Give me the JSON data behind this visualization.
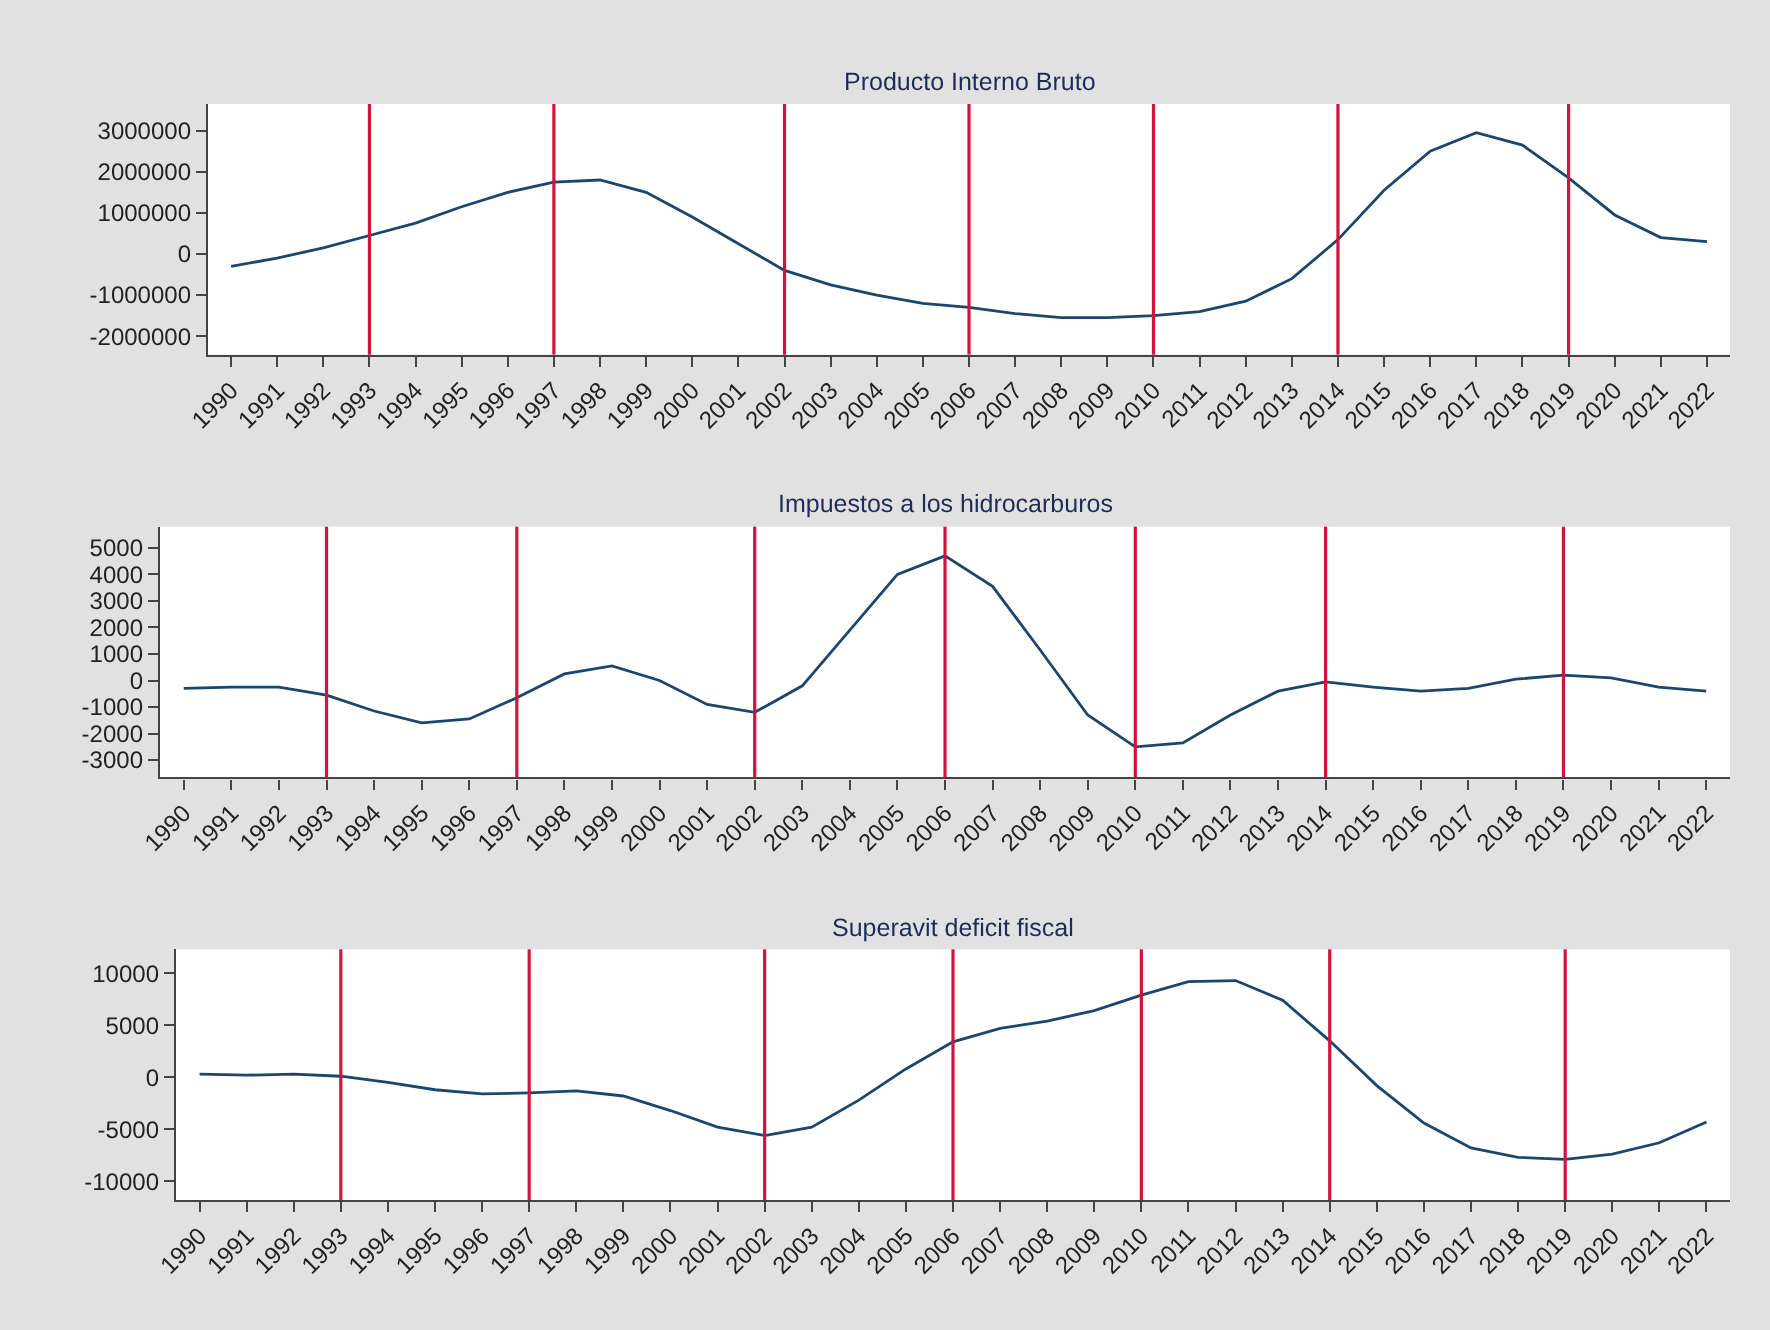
{
  "chart_data": [
    {
      "type": "line",
      "title": "Producto Interno Bruto",
      "color": "#1a476f",
      "x": [
        1990,
        1991,
        1992,
        1993,
        1994,
        1995,
        1996,
        1997,
        1998,
        1999,
        2000,
        2001,
        2002,
        2003,
        2004,
        2005,
        2006,
        2007,
        2008,
        2009,
        2010,
        2011,
        2012,
        2013,
        2014,
        2015,
        2016,
        2017,
        2018,
        2019,
        2020,
        2021,
        2022
      ],
      "values": [
        -300000,
        -100000,
        150000,
        450000,
        750000,
        1150000,
        1500000,
        1750000,
        1800000,
        1500000,
        900000,
        250000,
        -400000,
        -750000,
        -1000000,
        -1200000,
        -1300000,
        -1450000,
        -1550000,
        -1550000,
        -1500000,
        -1400000,
        -1150000,
        -600000,
        350000,
        1550000,
        2500000,
        2950000,
        2650000,
        1850000,
        950000,
        400000,
        300000
      ],
      "xlim": [
        1989.5,
        2022.5
      ],
      "xticks": [
        1990,
        1991,
        1992,
        1993,
        1994,
        1995,
        1996,
        1997,
        1998,
        1999,
        2000,
        2001,
        2002,
        2003,
        2004,
        2005,
        2006,
        2007,
        2008,
        2009,
        2010,
        2011,
        2012,
        2013,
        2014,
        2015,
        2016,
        2017,
        2018,
        2019,
        2020,
        2021,
        2022
      ],
      "ylim": [
        -2450000,
        3650000
      ],
      "yticks": [
        -2000000,
        -1000000,
        0,
        1000000,
        2000000,
        3000000
      ],
      "ref_lines": [
        {
          "axis": "x",
          "value": 1993,
          "color": "#d2143c"
        },
        {
          "axis": "x",
          "value": 1997,
          "color": "#d2143c"
        },
        {
          "axis": "x",
          "value": 2002,
          "color": "#d2143c"
        },
        {
          "axis": "x",
          "value": 2006,
          "color": "#d2143c"
        },
        {
          "axis": "x",
          "value": 2010,
          "color": "#d2143c"
        },
        {
          "axis": "x",
          "value": 2014,
          "color": "#d2143c"
        },
        {
          "axis": "x",
          "value": 2019,
          "color": "#d2143c"
        }
      ]
    },
    {
      "type": "line",
      "title": "Impuestos a los hidrocarburos",
      "color": "#1a476f",
      "x": [
        1990,
        1991,
        1992,
        1993,
        1994,
        1995,
        1996,
        1997,
        1998,
        1999,
        2000,
        2001,
        2002,
        2003,
        2004,
        2005,
        2006,
        2007,
        2008,
        2009,
        2010,
        2011,
        2012,
        2013,
        2014,
        2015,
        2016,
        2017,
        2018,
        2019,
        2020,
        2021,
        2022
      ],
      "values": [
        -300,
        -250,
        -250,
        -550,
        -1150,
        -1600,
        -1450,
        -650,
        250,
        550,
        0,
        -900,
        -1200,
        -200,
        1900,
        4000,
        4700,
        3550,
        1150,
        -1300,
        -2500,
        -2350,
        -1300,
        -400,
        -50,
        -250,
        -400,
        -300,
        50,
        200,
        100,
        -250,
        -400
      ],
      "xlim": [
        1989.5,
        2022.5
      ],
      "xticks": [
        1990,
        1991,
        1992,
        1993,
        1994,
        1995,
        1996,
        1997,
        1998,
        1999,
        2000,
        2001,
        2002,
        2003,
        2004,
        2005,
        2006,
        2007,
        2008,
        2009,
        2010,
        2011,
        2012,
        2013,
        2014,
        2015,
        2016,
        2017,
        2018,
        2019,
        2020,
        2021,
        2022
      ],
      "ylim": [
        -3650,
        5800
      ],
      "yticks": [
        -3000,
        -2000,
        -1000,
        0,
        1000,
        2000,
        3000,
        4000,
        5000
      ],
      "ref_lines": [
        {
          "axis": "x",
          "value": 1993,
          "color": "#d2143c"
        },
        {
          "axis": "x",
          "value": 1997,
          "color": "#d2143c"
        },
        {
          "axis": "x",
          "value": 2002,
          "color": "#d2143c"
        },
        {
          "axis": "x",
          "value": 2006,
          "color": "#d2143c"
        },
        {
          "axis": "x",
          "value": 2010,
          "color": "#d2143c"
        },
        {
          "axis": "x",
          "value": 2014,
          "color": "#d2143c"
        },
        {
          "axis": "x",
          "value": 2019,
          "color": "#d2143c"
        }
      ]
    },
    {
      "type": "line",
      "title": "Superavit deficit fiscal",
      "color": "#1a476f",
      "x": [
        1990,
        1991,
        1992,
        1993,
        1994,
        1995,
        1996,
        1997,
        1998,
        1999,
        2000,
        2001,
        2002,
        2003,
        2004,
        2005,
        2006,
        2007,
        2008,
        2009,
        2010,
        2011,
        2012,
        2013,
        2014,
        2015,
        2016,
        2017,
        2018,
        2019,
        2020,
        2021,
        2022
      ],
      "values": [
        300,
        200,
        300,
        100,
        -500,
        -1200,
        -1600,
        -1500,
        -1300,
        -1800,
        -3200,
        -4800,
        -5600,
        -4800,
        -2200,
        800,
        3400,
        4700,
        5400,
        6400,
        7900,
        9200,
        9300,
        7400,
        3500,
        -800,
        -4400,
        -6800,
        -7700,
        -7900,
        -7400,
        -6300,
        -4300
      ],
      "xlim": [
        1989.5,
        2022.5
      ],
      "xticks": [
        1990,
        1991,
        1992,
        1993,
        1994,
        1995,
        1996,
        1997,
        1998,
        1999,
        2000,
        2001,
        2002,
        2003,
        2004,
        2005,
        2006,
        2007,
        2008,
        2009,
        2010,
        2011,
        2012,
        2013,
        2014,
        2015,
        2016,
        2017,
        2018,
        2019,
        2020,
        2021,
        2022
      ],
      "ylim": [
        -11800,
        12300
      ],
      "yticks": [
        -10000,
        -5000,
        0,
        5000,
        10000
      ],
      "ref_lines": [
        {
          "axis": "x",
          "value": 1993,
          "color": "#d2143c"
        },
        {
          "axis": "x",
          "value": 1997,
          "color": "#d2143c"
        },
        {
          "axis": "x",
          "value": 2002,
          "color": "#d2143c"
        },
        {
          "axis": "x",
          "value": 2006,
          "color": "#d2143c"
        },
        {
          "axis": "x",
          "value": 2010,
          "color": "#d2143c"
        },
        {
          "axis": "x",
          "value": 2014,
          "color": "#d2143c"
        },
        {
          "axis": "x",
          "value": 2019,
          "color": "#d2143c"
        }
      ]
    }
  ]
}
